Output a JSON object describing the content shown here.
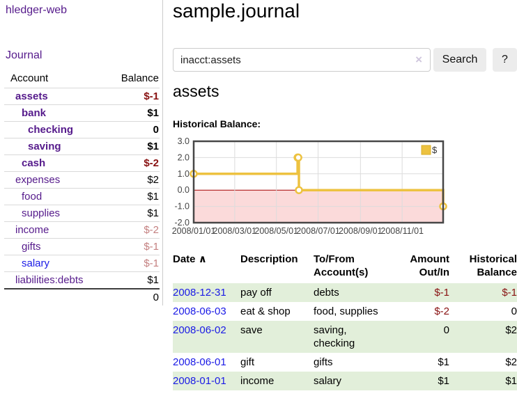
{
  "app": {
    "brand": "hledger-web"
  },
  "colors": {
    "link_purple": "#551a8b",
    "link_blue": "#1a1ae6",
    "negative_strong": "#881111",
    "negative_dim": "#c48080",
    "row_stripe_green": "#e2efda",
    "sidebar_divider": "#cccccc"
  },
  "sidebar": {
    "journal_link": "Journal",
    "accounts_header": {
      "account": "Account",
      "balance": "Balance"
    },
    "accounts": [
      {
        "name": "assets",
        "depth": 1,
        "bold": true,
        "link": "purple",
        "balance": "$-1",
        "bstyle": "neg-strong"
      },
      {
        "name": "bank",
        "depth": 2,
        "bold": true,
        "link": "purple",
        "balance": "$1",
        "bstyle": "plain"
      },
      {
        "name": "checking",
        "depth": 3,
        "bold": true,
        "link": "purple",
        "balance": "0",
        "bstyle": "plain"
      },
      {
        "name": "saving",
        "depth": 3,
        "bold": true,
        "link": "purple",
        "balance": "$1",
        "bstyle": "plain"
      },
      {
        "name": "cash",
        "depth": 2,
        "bold": true,
        "link": "purple",
        "balance": "$-2",
        "bstyle": "neg-strong"
      },
      {
        "name": "expenses",
        "depth": 1,
        "bold": false,
        "link": "purple",
        "balance": "$2",
        "bstyle": "plain"
      },
      {
        "name": "food",
        "depth": 2,
        "bold": false,
        "link": "purple",
        "balance": "$1",
        "bstyle": "plain"
      },
      {
        "name": "supplies",
        "depth": 2,
        "bold": false,
        "link": "purple",
        "balance": "$1",
        "bstyle": "plain"
      },
      {
        "name": "income",
        "depth": 1,
        "bold": false,
        "link": "purple",
        "balance": "$-2",
        "bstyle": "neg-dim"
      },
      {
        "name": "gifts",
        "depth": 2,
        "bold": false,
        "link": "purple",
        "balance": "$-1",
        "bstyle": "neg-dim"
      },
      {
        "name": "salary",
        "depth": 2,
        "bold": false,
        "link": "blue",
        "balance": "$-1",
        "bstyle": "neg-dim"
      },
      {
        "name": "liabilities:debts",
        "depth": 1,
        "bold": false,
        "link": "purple",
        "balance": "$1",
        "bstyle": "plain"
      }
    ],
    "total": "0"
  },
  "header": {
    "title": "sample.journal"
  },
  "search": {
    "value": "inacct:assets",
    "clear_icon": "×",
    "button": "Search",
    "help": "?"
  },
  "main": {
    "account_title": "assets",
    "chart_label": "Historical Balance:"
  },
  "chart_data": {
    "type": "line",
    "step": true,
    "title": "Historical Balance of assets",
    "series": [
      {
        "name": "$",
        "color": "#edc240",
        "points": [
          [
            "2008-01-01",
            1
          ],
          [
            "2008-06-01",
            2
          ],
          [
            "2008-06-02",
            2
          ],
          [
            "2008-06-03",
            0
          ],
          [
            "2008-12-31",
            -1
          ]
        ]
      }
    ],
    "xlim": [
      "2008-01-01",
      "2008-12-31"
    ],
    "ylim": [
      -2,
      3
    ],
    "y_ticks": [
      3,
      2,
      1,
      0,
      -1,
      -2
    ],
    "x_tick_dates": [
      "2008-01-01",
      "2008-03-01",
      "2008-05-01",
      "2008-07-01",
      "2008-09-01",
      "2008-11-01"
    ],
    "x_ticks": [
      "2008/01/01",
      "2008/03/01",
      "2008/05/01",
      "2008/07/01",
      "2008/09/01",
      "2008/11/01"
    ],
    "grid": true,
    "legend": {
      "label": "$",
      "position": "top-right"
    },
    "colors": {
      "grid": "#dcdcdc",
      "border": "#474747",
      "zero_line": "#a40000",
      "negative_fill": "#fbdada",
      "legend_box_border": "#d8ae28",
      "tick_label": "#444444"
    }
  },
  "register": {
    "sort_indicator": "∧",
    "columns": [
      {
        "l1": "Date",
        "l2": ""
      },
      {
        "l1": "Description",
        "l2": ""
      },
      {
        "l1": "To/From",
        "l2": "Account(s)"
      },
      {
        "l1": "Amount",
        "l2": "Out/In"
      },
      {
        "l1": "Historical",
        "l2": "Balance"
      }
    ],
    "rows": [
      {
        "date": "2008-12-31",
        "description": "pay off",
        "accounts": "debts",
        "amount": "$-1",
        "amount_style": "neg",
        "balance": "$-1",
        "balance_style": "neg"
      },
      {
        "date": "2008-06-03",
        "description": "eat & shop",
        "accounts": "food, supplies",
        "amount": "$-2",
        "amount_style": "neg",
        "balance": "0",
        "balance_style": "plain"
      },
      {
        "date": "2008-06-02",
        "description": "save",
        "accounts": "saving, checking",
        "amount": "0",
        "amount_style": "plain",
        "balance": "$2",
        "balance_style": "plain"
      },
      {
        "date": "2008-06-01",
        "description": "gift",
        "accounts": "gifts",
        "amount": "$1",
        "amount_style": "plain",
        "balance": "$2",
        "balance_style": "plain"
      },
      {
        "date": "2008-01-01",
        "description": "income",
        "accounts": "salary",
        "amount": "$1",
        "amount_style": "plain",
        "balance": "$1",
        "balance_style": "plain"
      }
    ]
  }
}
